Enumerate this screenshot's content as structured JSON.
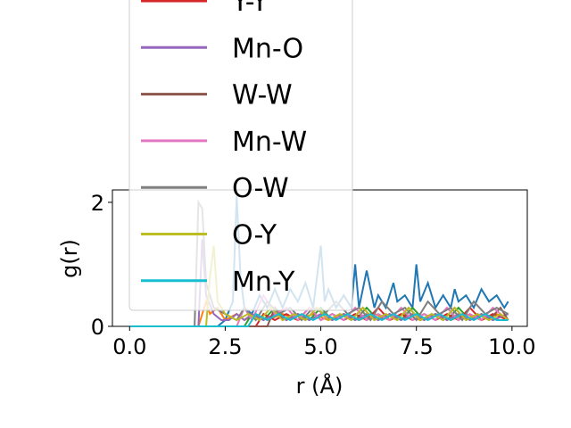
{
  "chart_data": {
    "type": "line",
    "xlabel": "r (Å)",
    "ylabel": "g(r)",
    "xlim": [
      -0.45,
      10.4
    ],
    "ylim": [
      0,
      2.2
    ],
    "xticks": [
      0.0,
      2.5,
      5.0,
      7.5,
      10.0
    ],
    "xtick_labels": [
      "0.0",
      "2.5",
      "5.0",
      "7.5",
      "10.0"
    ],
    "yticks": [
      0,
      2
    ],
    "ytick_labels": [
      "0",
      "2"
    ],
    "legend_placement": "upper-left",
    "legend_hidden_top": "Y-Y",
    "series": [
      {
        "name": "",
        "color": "#1f77b4",
        "x": [
          0,
          1.8,
          2.0,
          2.3,
          2.5,
          2.7,
          2.8,
          2.9,
          3.0,
          3.2,
          3.4,
          3.6,
          3.8,
          4.0,
          4.2,
          4.4,
          4.6,
          4.8,
          5.0,
          5.1,
          5.2,
          5.4,
          5.6,
          5.8,
          5.9,
          6.0,
          6.2,
          6.4,
          6.5,
          6.7,
          6.9,
          7.0,
          7.2,
          7.4,
          7.5,
          7.6,
          7.8,
          8.0,
          8.2,
          8.4,
          8.5,
          8.6,
          8.8,
          9.0,
          9.2,
          9.4,
          9.6,
          9.8,
          9.9
        ],
        "values": [
          0,
          0,
          0,
          0,
          0.1,
          0.4,
          2.1,
          0.8,
          0.3,
          0.2,
          0.5,
          0.3,
          0.6,
          0.3,
          0.6,
          0.4,
          0.7,
          0.3,
          1.3,
          0.4,
          0.6,
          0.3,
          0.5,
          0.3,
          1.0,
          0.3,
          0.9,
          0.3,
          0.5,
          0.3,
          0.7,
          0.4,
          0.5,
          0.3,
          1.0,
          0.4,
          0.7,
          0.3,
          0.5,
          0.3,
          0.6,
          0.4,
          0.5,
          0.3,
          0.6,
          0.4,
          0.5,
          0.3,
          0.4
        ]
      },
      {
        "name": "",
        "color": "#ff7f0e",
        "x": [
          0,
          1.8,
          2.0,
          2.1,
          2.3,
          2.5,
          2.8,
          3.0,
          3.3,
          3.6,
          4.0,
          4.4,
          4.8,
          5.2,
          5.6,
          6.0,
          6.4,
          6.8,
          7.2,
          7.6,
          8.0,
          8.4,
          8.8,
          9.2,
          9.6,
          9.9
        ],
        "values": [
          0,
          0,
          0.4,
          0.2,
          0.3,
          0.1,
          0.2,
          0.1,
          0.2,
          0.1,
          0.2,
          0.1,
          0.2,
          0.1,
          0.2,
          0.1,
          0.2,
          0.1,
          0.2,
          0.1,
          0.2,
          0.1,
          0.2,
          0.1,
          0.2,
          0.1
        ]
      },
      {
        "name": "",
        "color": "#2ca02c",
        "x": [
          0,
          3.0,
          3.2,
          3.5,
          3.8,
          4.1,
          4.4,
          4.7,
          5.0,
          5.3,
          5.6,
          5.9,
          6.2,
          6.5,
          6.8,
          7.1,
          7.4,
          7.7,
          8.0,
          8.3,
          8.6,
          8.9,
          9.2,
          9.5,
          9.9
        ],
        "values": [
          0,
          0,
          0.2,
          0.1,
          0.3,
          0.1,
          0.2,
          0.1,
          0.3,
          0.1,
          0.2,
          0.1,
          0.3,
          0.1,
          0.2,
          0.1,
          0.3,
          0.1,
          0.2,
          0.1,
          0.3,
          0.1,
          0.2,
          0.1,
          0.2
        ]
      },
      {
        "name": "Y-Y",
        "color": "#d62728",
        "x": [
          0,
          3.3,
          3.5,
          3.8,
          4.1,
          4.4,
          4.7,
          5.0,
          5.3,
          5.6,
          5.9,
          6.2,
          6.5,
          6.8,
          7.1,
          7.4,
          7.7,
          8.0,
          8.3,
          8.6,
          8.9,
          9.2,
          9.5,
          9.9
        ],
        "values": [
          0,
          0,
          0.2,
          0.1,
          0.2,
          0.1,
          0.3,
          0.1,
          0.2,
          0.1,
          0.2,
          0.1,
          0.3,
          0.1,
          0.2,
          0.1,
          0.2,
          0.1,
          0.2,
          0.1,
          0.3,
          0.1,
          0.2,
          0.1
        ]
      },
      {
        "name": "Mn-O",
        "color": "#9467bd",
        "x": [
          0,
          1.8,
          1.9,
          2.0,
          2.2,
          2.4,
          2.6,
          2.8,
          3.0,
          3.2,
          3.5,
          3.8,
          4.1,
          4.4,
          4.7,
          5.0,
          5.3,
          5.6,
          5.9,
          6.2,
          6.5,
          6.8,
          7.1,
          7.4,
          7.7,
          8.0,
          8.3,
          8.6,
          8.9,
          9.2,
          9.5,
          9.9
        ],
        "values": [
          0,
          0,
          1.4,
          0.5,
          0.2,
          0.1,
          0.1,
          0.2,
          0.1,
          0.2,
          0.1,
          0.2,
          0.1,
          0.2,
          0.1,
          0.2,
          0.1,
          0.2,
          0.1,
          0.2,
          0.1,
          0.2,
          0.1,
          0.2,
          0.1,
          0.2,
          0.1,
          0.2,
          0.1,
          0.2,
          0.1,
          0.2
        ]
      },
      {
        "name": "W-W",
        "color": "#8c564b",
        "x": [
          0,
          3.6,
          3.8,
          4.0,
          4.3,
          4.6,
          4.9,
          5.2,
          5.5,
          5.8,
          6.1,
          6.4,
          6.7,
          7.0,
          7.3,
          7.6,
          7.9,
          8.2,
          8.5,
          8.8,
          9.1,
          9.4,
          9.7,
          9.9
        ],
        "values": [
          0,
          0,
          0.3,
          0.1,
          0.2,
          0.1,
          0.3,
          0.1,
          0.2,
          0.1,
          0.3,
          0.1,
          0.2,
          0.1,
          0.3,
          0.1,
          0.2,
          0.1,
          0.3,
          0.1,
          0.2,
          0.1,
          0.3,
          0.1
        ]
      },
      {
        "name": "Mn-W",
        "color": "#e377c2",
        "x": [
          0,
          2.8,
          3.0,
          3.2,
          3.5,
          3.8,
          4.1,
          4.4,
          4.7,
          5.0,
          5.3,
          5.6,
          5.9,
          6.2,
          6.5,
          6.8,
          7.1,
          7.4,
          7.7,
          8.0,
          8.3,
          8.6,
          8.9,
          9.2,
          9.5,
          9.9
        ],
        "values": [
          0,
          0,
          0.3,
          0.1,
          0.5,
          0.2,
          0.3,
          0.1,
          0.3,
          0.1,
          0.2,
          0.1,
          0.3,
          0.1,
          0.2,
          0.1,
          0.3,
          0.1,
          0.2,
          0.1,
          0.3,
          0.1,
          0.2,
          0.1,
          0.3,
          0.1
        ]
      },
      {
        "name": "O-W",
        "color": "#7f7f7f",
        "x": [
          0,
          1.7,
          1.8,
          1.9,
          2.0,
          2.2,
          2.5,
          2.8,
          3.0,
          3.3,
          3.6,
          3.9,
          4.2,
          4.5,
          4.8,
          5.1,
          5.4,
          5.7,
          6.0,
          6.3,
          6.6,
          6.9,
          7.2,
          7.5,
          7.8,
          8.1,
          8.4,
          8.7,
          9.0,
          9.3,
          9.6,
          9.9
        ],
        "values": [
          0,
          0,
          2.0,
          1.9,
          0.7,
          0.3,
          0.2,
          0.1,
          0.3,
          0.1,
          0.4,
          0.2,
          0.3,
          0.1,
          0.3,
          0.2,
          0.4,
          0.2,
          0.3,
          0.1,
          0.4,
          0.2,
          0.3,
          0.1,
          0.4,
          0.2,
          0.3,
          0.1,
          0.4,
          0.2,
          0.3,
          0.2
        ]
      },
      {
        "name": "O-Y",
        "color": "#bcbd22",
        "x": [
          0,
          2.0,
          2.1,
          2.2,
          2.3,
          2.5,
          2.8,
          3.1,
          3.4,
          3.7,
          4.0,
          4.3,
          4.6,
          4.9,
          5.2,
          5.5,
          5.8,
          6.1,
          6.4,
          6.7,
          7.0,
          7.3,
          7.6,
          7.9,
          8.2,
          8.5,
          8.8,
          9.1,
          9.4,
          9.7,
          9.9
        ],
        "values": [
          0,
          0,
          0.8,
          1.3,
          0.4,
          0.2,
          0.1,
          0.2,
          0.1,
          0.3,
          0.1,
          0.2,
          0.1,
          0.3,
          0.1,
          0.2,
          0.1,
          0.3,
          0.1,
          0.2,
          0.1,
          0.3,
          0.1,
          0.2,
          0.1,
          0.3,
          0.1,
          0.2,
          0.1,
          0.2,
          0.1
        ]
      },
      {
        "name": "Mn-Y",
        "color": "#17becf",
        "x": [
          0,
          3.1,
          3.3,
          3.6,
          3.9,
          4.2,
          4.5,
          4.8,
          5.1,
          5.4,
          5.7,
          6.0,
          6.3,
          6.6,
          6.9,
          7.2,
          7.5,
          7.8,
          8.1,
          8.4,
          8.7,
          9.0,
          9.3,
          9.6,
          9.9
        ],
        "values": [
          0,
          0,
          0.2,
          0.1,
          0.2,
          0.1,
          0.2,
          0.1,
          0.2,
          0.1,
          0.2,
          0.1,
          0.2,
          0.1,
          0.2,
          0.1,
          0.2,
          0.1,
          0.2,
          0.1,
          0.2,
          0.1,
          0.2,
          0.1,
          0.1
        ]
      }
    ]
  }
}
